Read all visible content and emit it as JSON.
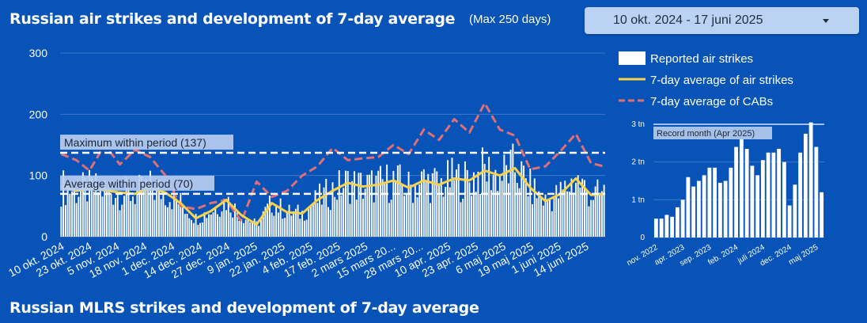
{
  "header": {
    "title": "Russian air strikes and development of 7-day average",
    "subtitle": "(Max 250 days)",
    "date_range": "10 okt. 2024 - 17 juni 2025"
  },
  "section2": {
    "title": "Russian MLRS strikes and development of 7-day average"
  },
  "colors": {
    "bars": "#ffffff",
    "avg_line": "#f7d24a",
    "cab_line": "#e06f76",
    "background": "#0753b8",
    "refline": "#ffffff"
  },
  "chart_data": [
    {
      "type": "bar",
      "ylim": [
        0,
        300
      ],
      "yticks": [
        0,
        100,
        200,
        300
      ],
      "x_tick_labels": [
        "10 okt. 2024",
        "23 okt. 2024",
        "5 nov. 2024",
        "18 nov. 2024",
        "1 dec. 2024",
        "14 dec. 2024",
        "27 dec. 2024",
        "9 jan. 2025",
        "22 jan. 2025",
        "4 feb. 2025",
        "17 feb. 2025",
        "2 mars 2025",
        "15 mars 20...",
        "28 mars 20...",
        "10 apr. 2025",
        "23 apr. 2025",
        "6 maj 2025",
        "19 maj 2025",
        "1 juni 2025",
        "14 juni 2025"
      ],
      "legend": [
        "Reported air strikes",
        "7-day average of air strikes",
        "7-day average of CABs"
      ],
      "reference_lines": [
        {
          "label": "Maximum within period (137)",
          "value": 137
        },
        {
          "label": "Average within period (70)",
          "value": 70
        }
      ],
      "series": [
        {
          "name": "7-day average of air strikes",
          "x_index": [
            0,
            7,
            13,
            20,
            27,
            34,
            41,
            48,
            55,
            62,
            69,
            76,
            83,
            90,
            97,
            104,
            111,
            118,
            125,
            132,
            139,
            146,
            153,
            160,
            167,
            174,
            181,
            188,
            195,
            202,
            209,
            216,
            223,
            230,
            237,
            244,
            250
          ],
          "values": [
            82,
            75,
            78,
            76,
            72,
            70,
            80,
            72,
            55,
            30,
            42,
            60,
            35,
            20,
            55,
            40,
            38,
            60,
            75,
            88,
            82,
            85,
            92,
            80,
            92,
            85,
            95,
            92,
            108,
            100,
            112,
            80,
            58,
            70,
            95,
            68,
            70
          ]
        },
        {
          "name": "7-day average of CABs",
          "x_index": [
            0,
            7,
            13,
            20,
            27,
            34,
            41,
            48,
            55,
            62,
            69,
            76,
            83,
            90,
            97,
            104,
            111,
            118,
            125,
            132,
            139,
            146,
            153,
            160,
            167,
            174,
            181,
            188,
            195,
            202,
            209,
            216,
            223,
            230,
            237,
            244,
            250
          ],
          "values": [
            135,
            125,
            108,
            150,
            118,
            142,
            130,
            100,
            50,
            45,
            55,
            60,
            25,
            90,
            65,
            75,
            100,
            115,
            145,
            125,
            128,
            130,
            150,
            135,
            175,
            158,
            192,
            170,
            218,
            175,
            165,
            110,
            115,
            140,
            168,
            120,
            115
          ]
        }
      ]
    },
    {
      "type": "bar",
      "title": "Record month (Apr 2025)",
      "ylim": [
        0,
        3
      ],
      "yticks": [
        "0",
        "1 tn",
        "2 tn",
        "3 tn"
      ],
      "x_tick_labels": [
        "nov. 2022",
        "apr. 2023",
        "sep. 2023",
        "feb. 2024",
        "juli 2024",
        "dec. 2024",
        "maj 2025"
      ],
      "values": [
        0.5,
        0.5,
        0.6,
        0.55,
        0.8,
        1.0,
        1.6,
        1.35,
        1.5,
        1.65,
        1.85,
        1.85,
        1.45,
        1.5,
        1.85,
        2.4,
        2.6,
        2.35,
        1.9,
        1.65,
        2.05,
        2.25,
        2.25,
        2.35,
        2.0,
        0.85,
        1.4,
        2.25,
        2.75,
        3.05,
        2.4,
        1.2
      ]
    }
  ]
}
